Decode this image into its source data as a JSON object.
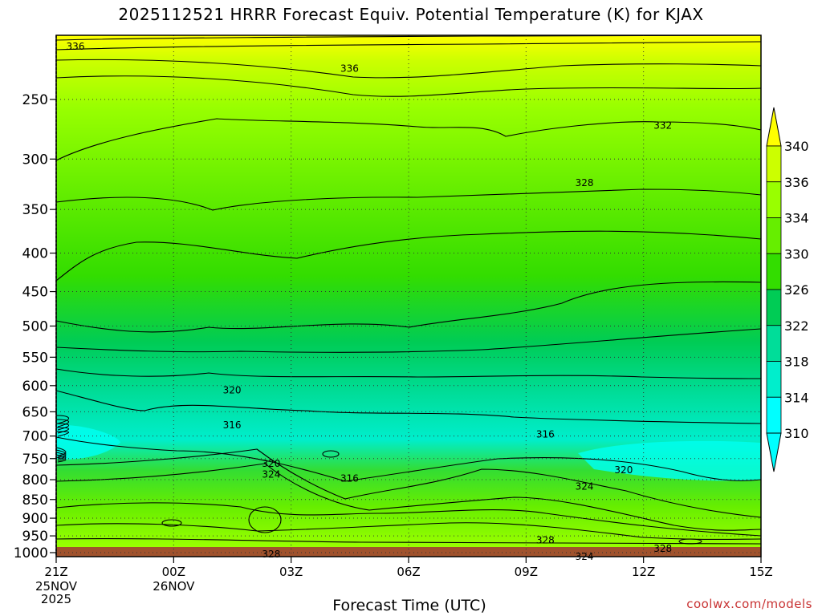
{
  "title": "2025112521 HRRR Forecast Equiv. Potential Temperature (K) for KJAX",
  "credit": "coolwx.com/models",
  "chart_data": {
    "type": "heatmap",
    "title": "2025112521 HRRR Forecast Equiv. Potential Temperature (K) for KJAX",
    "xlabel": "Forecast Time (UTC)",
    "ylabel": "",
    "y_scale": "log-pressure",
    "y_ticks": [
      250,
      300,
      350,
      400,
      450,
      500,
      550,
      600,
      650,
      700,
      750,
      800,
      850,
      900,
      950,
      1000
    ],
    "x_ticks": [
      "21Z",
      "00Z",
      "03Z",
      "06Z",
      "09Z",
      "12Z",
      "15Z"
    ],
    "x_date_labels": [
      {
        "tick": "21Z",
        "lines": [
          "25NOV",
          "2025"
        ]
      },
      {
        "tick": "00Z",
        "lines": [
          "26NOV"
        ]
      }
    ],
    "grid": true,
    "colorbar": {
      "labels": [
        340,
        336,
        334,
        330,
        326,
        322,
        318,
        314,
        310
      ],
      "colors": [
        "#ffff00",
        "#ccff00",
        "#99ff00",
        "#66ee00",
        "#33dd00",
        "#00cc55",
        "#00dd99",
        "#00eecc",
        "#00ffff"
      ]
    },
    "ground_color": "#a0522d",
    "contour_labels": [
      {
        "value": "336",
        "time": "21Z",
        "pressure": 212
      },
      {
        "value": "336",
        "time": "04Z",
        "pressure": 227
      },
      {
        "value": "332",
        "time": "12Z",
        "pressure": 270
      },
      {
        "value": "328",
        "time": "10Z",
        "pressure": 322
      },
      {
        "value": "320",
        "time": "01Z",
        "pressure": 607
      },
      {
        "value": "316",
        "time": "01Z",
        "pressure": 675
      },
      {
        "value": "316",
        "time": "09Z",
        "pressure": 695
      },
      {
        "value": "320",
        "time": "02Z",
        "pressure": 760
      },
      {
        "value": "324",
        "time": "02Z",
        "pressure": 785
      },
      {
        "value": "316",
        "time": "04Z",
        "pressure": 795
      },
      {
        "value": "320",
        "time": "11Z",
        "pressure": 775
      },
      {
        "value": "324",
        "time": "10Z",
        "pressure": 815
      },
      {
        "value": "328",
        "time": "09Z",
        "pressure": 960
      },
      {
        "value": "328",
        "time": "12Z",
        "pressure": 985
      },
      {
        "value": "328",
        "time": "02Z",
        "pressure": 1003
      },
      {
        "value": "324",
        "time": "10Z",
        "pressure": 1010
      }
    ]
  }
}
